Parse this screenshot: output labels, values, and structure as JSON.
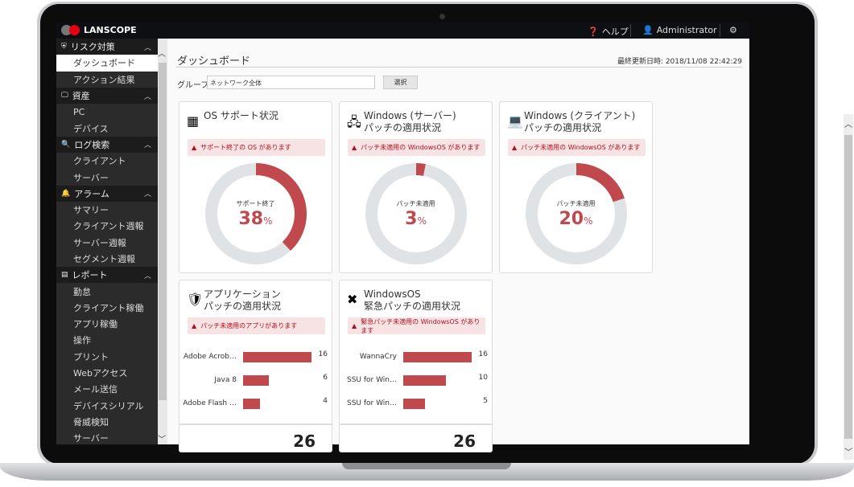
{
  "topbar": {
    "brand": "LANSCOPE",
    "help": "ヘルプ",
    "user": "Administrator"
  },
  "sidebar": {
    "groups": [
      {
        "label": "リスク対策",
        "icon": "shield-icon",
        "items": [
          "ダッシュボード",
          "アクション結果"
        ]
      },
      {
        "label": "資産",
        "icon": "monitor-icon",
        "items": [
          "PC",
          "デバイス"
        ]
      },
      {
        "label": "ログ検索",
        "icon": "search-icon",
        "items": [
          "クライアント",
          "サーバー"
        ]
      },
      {
        "label": "アラーム",
        "icon": "bell-icon",
        "items": [
          "サマリー",
          "クライアント週報",
          "サーバー週報",
          "セグメント週報"
        ]
      },
      {
        "label": "レポート",
        "icon": "report-icon",
        "items": [
          "勤怠",
          "クライアント稼働",
          "アプリ稼働",
          "操作",
          "プリント",
          "Webアクセス",
          "メール送信",
          "デバイスシリアル",
          "脅威検知",
          "サーバー"
        ]
      }
    ],
    "selected": "ダッシュボード"
  },
  "main": {
    "title": "ダッシュボード",
    "updated": "最終更新日時: 2018/11/08 22:42:29",
    "group_label": "グループ:",
    "group_value": "ネットワーク全体",
    "select_button": "選択"
  },
  "donut_cards": [
    {
      "title1": "OS サポート状況",
      "title2": "",
      "alert": "サポート終了の OS があります",
      "center_label": "サポート終了",
      "percent": 38,
      "unit": "%"
    },
    {
      "title1": "Windows (サーバー)",
      "title2": "パッチの適用状況",
      "alert": "パッチ未適用の WindowsOS があります",
      "center_label": "パッチ未適用",
      "percent": 3,
      "unit": "%"
    },
    {
      "title1": "Windows (クライアント)",
      "title2": "パッチの適用状況",
      "alert": "パッチ未適用の WindowsOS があります",
      "center_label": "パッチ未適用",
      "percent": 20,
      "unit": "%"
    }
  ],
  "bar_cards": [
    {
      "title1": "アプリケーション",
      "title2": "パッチの適用状況",
      "alert": "パッチ未適用のアプリがあります",
      "rows": [
        {
          "label": "Adobe Acrob…",
          "value": 16
        },
        {
          "label": "Java 8",
          "value": 6
        },
        {
          "label": "Adobe Flash …",
          "value": 4
        }
      ],
      "total": "26"
    },
    {
      "title1": "WindowsOS",
      "title2": "緊急パッチの適用状況",
      "alert": "緊急パッチ未適用の WindowsOS があります",
      "rows": [
        {
          "label": "WannaCry",
          "value": 16
        },
        {
          "label": "SSU for Win…",
          "value": 10
        },
        {
          "label": "SSU for Win…",
          "value": 5
        }
      ],
      "total": "26"
    }
  ],
  "colors": {
    "accent": "#c0494d",
    "track": "#dfe3e6",
    "alert_bg": "#f7e2e4",
    "alert_text": "#b0101c"
  }
}
